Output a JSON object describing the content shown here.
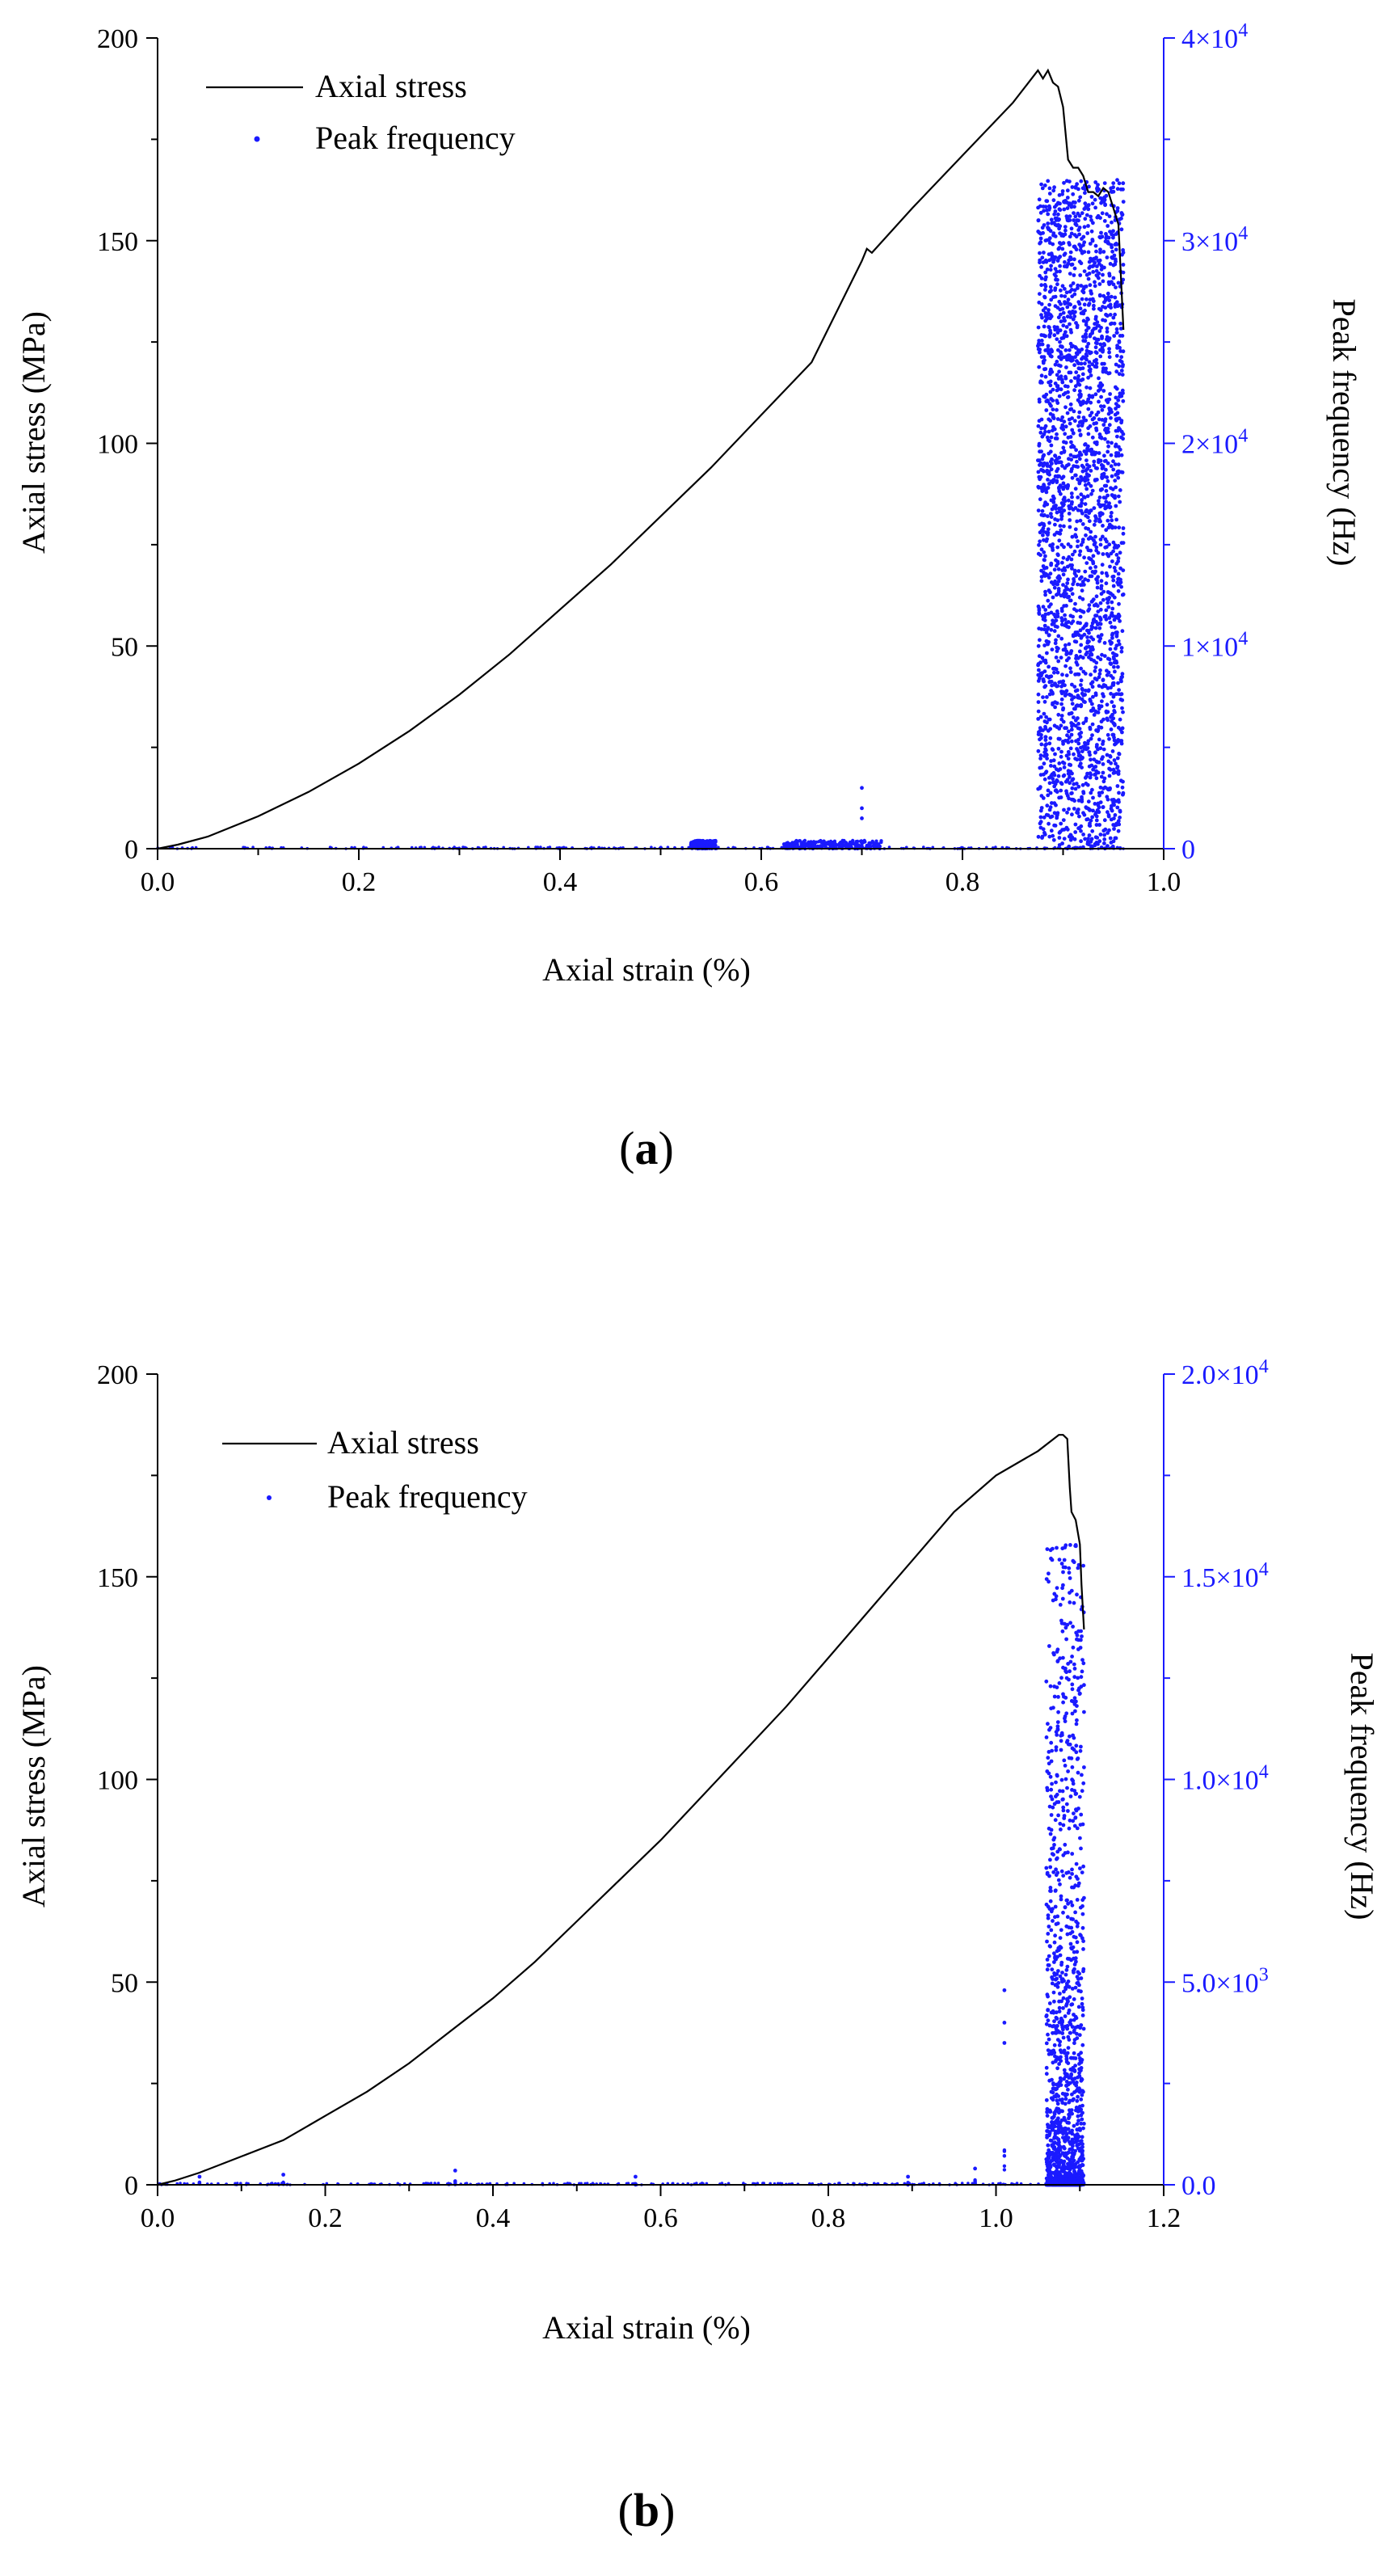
{
  "panels": [
    {
      "caption": "a",
      "chart_data": {
        "type": "line+scatter",
        "xlabel": "Axial strain (%)",
        "ylabel": "Axial stress (MPa)",
        "y2label": "Peak frequency (Hz)",
        "xlim": [
          0,
          1.0
        ],
        "ylim": [
          0,
          200
        ],
        "y2lim": [
          0,
          40000
        ],
        "x_ticks": [
          "0.0",
          "0.2",
          "0.4",
          "0.6",
          "0.8",
          "1.0"
        ],
        "y_ticks": [
          "0",
          "50",
          "100",
          "150",
          "200"
        ],
        "y2_ticks": [
          {
            "mantissa": "0",
            "exp": ""
          },
          {
            "mantissa": "1×10",
            "exp": "4"
          },
          {
            "mantissa": "2×10",
            "exp": "4"
          },
          {
            "mantissa": "3×10",
            "exp": "4"
          },
          {
            "mantissa": "4×10",
            "exp": "4"
          }
        ],
        "legend": {
          "position": "top-left",
          "entries": [
            "Axial stress",
            "Peak frequency"
          ]
        },
        "colors": {
          "stress": "#000000",
          "frequency": "#1a1aff",
          "right_axis": "#1a1aff"
        },
        "series": [
          {
            "name": "Axial stress",
            "axis": "left",
            "x": [
              0,
              0.02,
              0.05,
              0.1,
              0.15,
              0.2,
              0.25,
              0.3,
              0.35,
              0.4,
              0.45,
              0.5,
              0.55,
              0.6,
              0.65,
              0.7,
              0.705,
              0.71,
              0.75,
              0.8,
              0.85,
              0.875,
              0.88,
              0.885,
              0.89,
              0.895,
              0.9,
              0.905,
              0.91,
              0.915,
              0.92,
              0.925,
              0.93,
              0.935,
              0.94,
              0.945,
              0.95,
              0.955,
              0.96
            ],
            "y": [
              0,
              1,
              3,
              8,
              14,
              21,
              29,
              38,
              48,
              59,
              70,
              82,
              94,
              107,
              120,
              145,
              148,
              147,
              158,
              171,
              184,
              192,
              190,
              192,
              189,
              188,
              183,
              170,
              168,
              168,
              166,
              162,
              162,
              161,
              163,
              162,
              158,
              154,
              128
            ]
          },
          {
            "name": "Peak frequency",
            "axis": "right",
            "low_band_x": [
              0,
              0.96
            ],
            "low_band_value": 0,
            "clusters": [
              {
                "x_range": [
                  0.53,
                  0.555
                ],
                "value_range": [
                  0,
                  400
                ]
              },
              {
                "x_range": [
                  0.62,
                  0.72
                ],
                "value_range": [
                  0,
                  400
                ]
              }
            ],
            "spikes": [
              {
                "x": 0.7,
                "values": [
                  3000,
                  2000,
                  1500
                ]
              }
            ],
            "dense_band": {
              "x_range": [
                0.875,
                0.96
              ],
              "value_range": [
                0,
                33000
              ]
            }
          }
        ]
      }
    },
    {
      "caption": "b",
      "chart_data": {
        "type": "line+scatter",
        "xlabel": "Axial strain (%)",
        "ylabel": "Axial stress (MPa)",
        "y2label": "Peak frequency (Hz)",
        "xlim": [
          0,
          1.2
        ],
        "ylim": [
          0,
          200
        ],
        "y2lim": [
          0,
          20000
        ],
        "x_ticks": [
          "0.0",
          "0.2",
          "0.4",
          "0.6",
          "0.8",
          "1.0",
          "1.2"
        ],
        "y_ticks": [
          "0",
          "50",
          "100",
          "150",
          "200"
        ],
        "y2_ticks": [
          {
            "mantissa": "0.0",
            "exp": ""
          },
          {
            "mantissa": "5.0×10",
            "exp": "3"
          },
          {
            "mantissa": "1.0×10",
            "exp": "4"
          },
          {
            "mantissa": "1.5×10",
            "exp": "4"
          },
          {
            "mantissa": "2.0×10",
            "exp": "4"
          }
        ],
        "legend": {
          "position": "top-left",
          "entries": [
            "Axial stress",
            "Peak frequency"
          ]
        },
        "colors": {
          "stress": "#000000",
          "frequency": "#1a1aff",
          "right_axis": "#1a1aff"
        },
        "series": [
          {
            "name": "Axial stress",
            "axis": "left",
            "x": [
              0,
              0.02,
              0.05,
              0.1,
              0.15,
              0.2,
              0.25,
              0.3,
              0.35,
              0.4,
              0.45,
              0.5,
              0.55,
              0.6,
              0.65,
              0.7,
              0.75,
              0.8,
              0.85,
              0.9,
              0.95,
              1.0,
              1.05,
              1.075,
              1.08,
              1.085,
              1.088,
              1.09,
              1.095,
              1.1,
              1.102,
              1.105
            ],
            "y": [
              0,
              1,
              3,
              7,
              11,
              17,
              23,
              30,
              38,
              46,
              55,
              65,
              75,
              85,
              96,
              107,
              118,
              130,
              142,
              154,
              166,
              175,
              181,
              185,
              185,
              184,
              172,
              166,
              164,
              158,
              148,
              137
            ]
          },
          {
            "name": "Peak frequency",
            "axis": "right",
            "low_band_x": [
              0,
              1.105
            ],
            "low_band_value": 0,
            "spikes": [
              {
                "x": 0.05,
                "values": [
                  200
                ]
              },
              {
                "x": 0.15,
                "values": [
                  250
                ]
              },
              {
                "x": 0.355,
                "values": [
                  350
                ]
              },
              {
                "x": 0.57,
                "values": [
                  200
                ]
              },
              {
                "x": 0.895,
                "values": [
                  200
                ]
              },
              {
                "x": 0.975,
                "values": [
                  400
                ]
              },
              {
                "x": 1.01,
                "values": [
                  4800,
                  4000,
                  3500
                ]
              }
            ],
            "dense_band": {
              "x_range": [
                1.06,
                1.105
              ],
              "value_range": [
                0,
                15800
              ]
            }
          }
        ]
      }
    }
  ]
}
